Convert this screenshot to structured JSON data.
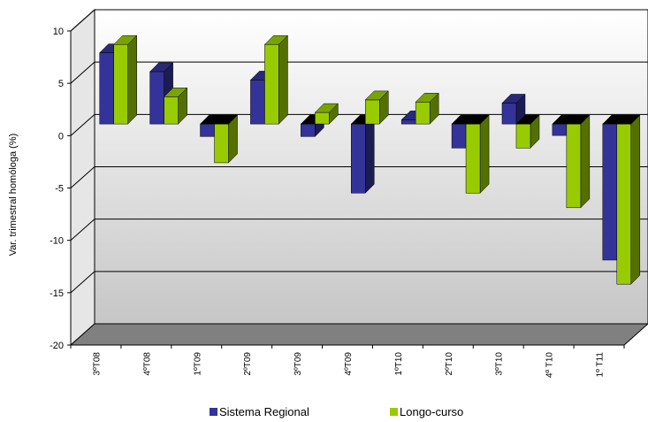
{
  "chart_data": {
    "type": "bar",
    "ylabel": "Var. trimestral homóloga (%)",
    "ylim": [
      -20,
      10
    ],
    "yticks": [
      10,
      5,
      0,
      -5,
      -10,
      -15,
      -20
    ],
    "grid": true,
    "legend_position": "bottom",
    "categories": [
      "3ºT08",
      "4ºT08",
      "1ºT09",
      "2ºT09",
      "3ºT09",
      "4ºT09",
      "1ºT10",
      "2ºT10",
      "3ºT10",
      "4º T10",
      "1º T11"
    ],
    "series": [
      {
        "name": "Sistema Regional",
        "color": "#333399",
        "values": [
          6.8,
          5.0,
          -1.2,
          4.2,
          -1.2,
          -6.6,
          0.4,
          -2.3,
          2.0,
          -1.1,
          -13.0
        ]
      },
      {
        "name": "Longo-curso",
        "color": "#99cc00",
        "values": [
          7.6,
          2.6,
          -3.7,
          7.6,
          1.1,
          2.3,
          2.1,
          -6.6,
          -2.3,
          -8.0,
          -15.3
        ]
      }
    ]
  }
}
